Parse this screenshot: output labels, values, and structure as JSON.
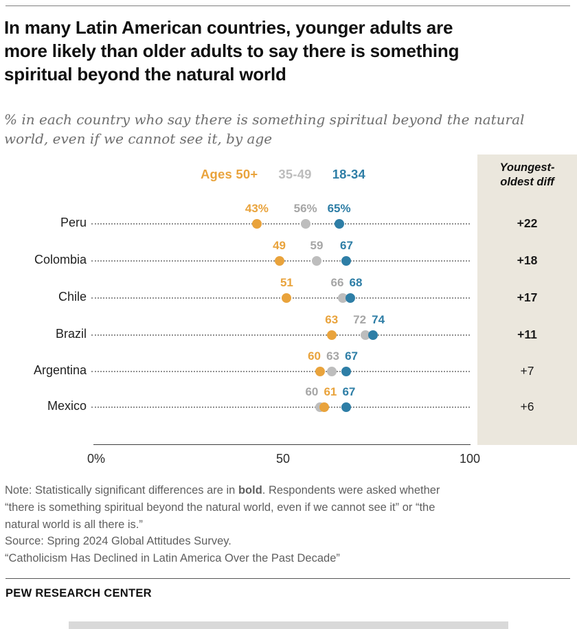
{
  "colors": {
    "orange": "#E9A33C",
    "gray": "#BDBDBD",
    "blue": "#2E7EA6",
    "gray_text": "#A6A6A6",
    "panel_bg": "#EBE7DD",
    "dotted_line": "#8F8F8F"
  },
  "header": {
    "title": "In many Latin American countries, younger adults are\nmore likely than older adults to say there is something\nspiritual beyond the natural world",
    "subtitle": "% in each country who say there is something spiritual beyond the natural\nworld, even if we cannot see it, by age"
  },
  "panel": {
    "header_line1": "Youngest-",
    "header_line2": "oldest diff"
  },
  "chart_data": {
    "type": "scatter",
    "subtype": "dot-plot",
    "categories": [
      "Peru",
      "Colombia",
      "Chile",
      "Brazil",
      "Argentina",
      "Mexico"
    ],
    "series": [
      {
        "name": "Ages 50+",
        "key": "orange",
        "values": [
          43,
          49,
          51,
          63,
          60,
          61
        ]
      },
      {
        "name": "35-49",
        "key": "gray",
        "values": [
          56,
          59,
          66,
          72,
          63,
          60
        ]
      },
      {
        "name": "18-34",
        "key": "blue",
        "values": [
          65,
          67,
          68,
          74,
          67,
          67
        ]
      }
    ],
    "value_labels": [
      [
        "43%",
        "56%",
        "65%"
      ],
      [
        "49",
        "59",
        "67"
      ],
      [
        "51",
        "66",
        "68"
      ],
      [
        "63",
        "72",
        "74"
      ],
      [
        "60",
        "63",
        "67"
      ],
      [
        "61",
        "60",
        "67"
      ]
    ],
    "diffs": [
      {
        "label": "+22",
        "bold": true
      },
      {
        "label": "+18",
        "bold": true
      },
      {
        "label": "+17",
        "bold": true
      },
      {
        "label": "+11",
        "bold": true
      },
      {
        "label": "+7",
        "bold": false
      },
      {
        "label": "+6",
        "bold": false
      }
    ],
    "xlim": [
      0,
      100
    ],
    "x_ticks": [
      {
        "label": "0%",
        "value": 0
      },
      {
        "label": "50",
        "value": 50
      },
      {
        "label": "100",
        "value": 100
      }
    ],
    "legend_position": "top",
    "grid": "dotted-row-leaders"
  },
  "notes": {
    "note_prefix": "Note: Statistically significant differences are in ",
    "note_bold": "bold",
    "note_suffix": ". Respondents were asked whether\n“there is something spiritual beyond the natural world, even if we cannot see it” or “the\nnatural world is all there is.”",
    "source": "Source: Spring 2024 Global Attitudes Survey.",
    "citation": "“Catholicism Has Declined in Latin America Over the Past Decade”"
  },
  "footer": {
    "brand": "PEW RESEARCH CENTER"
  }
}
